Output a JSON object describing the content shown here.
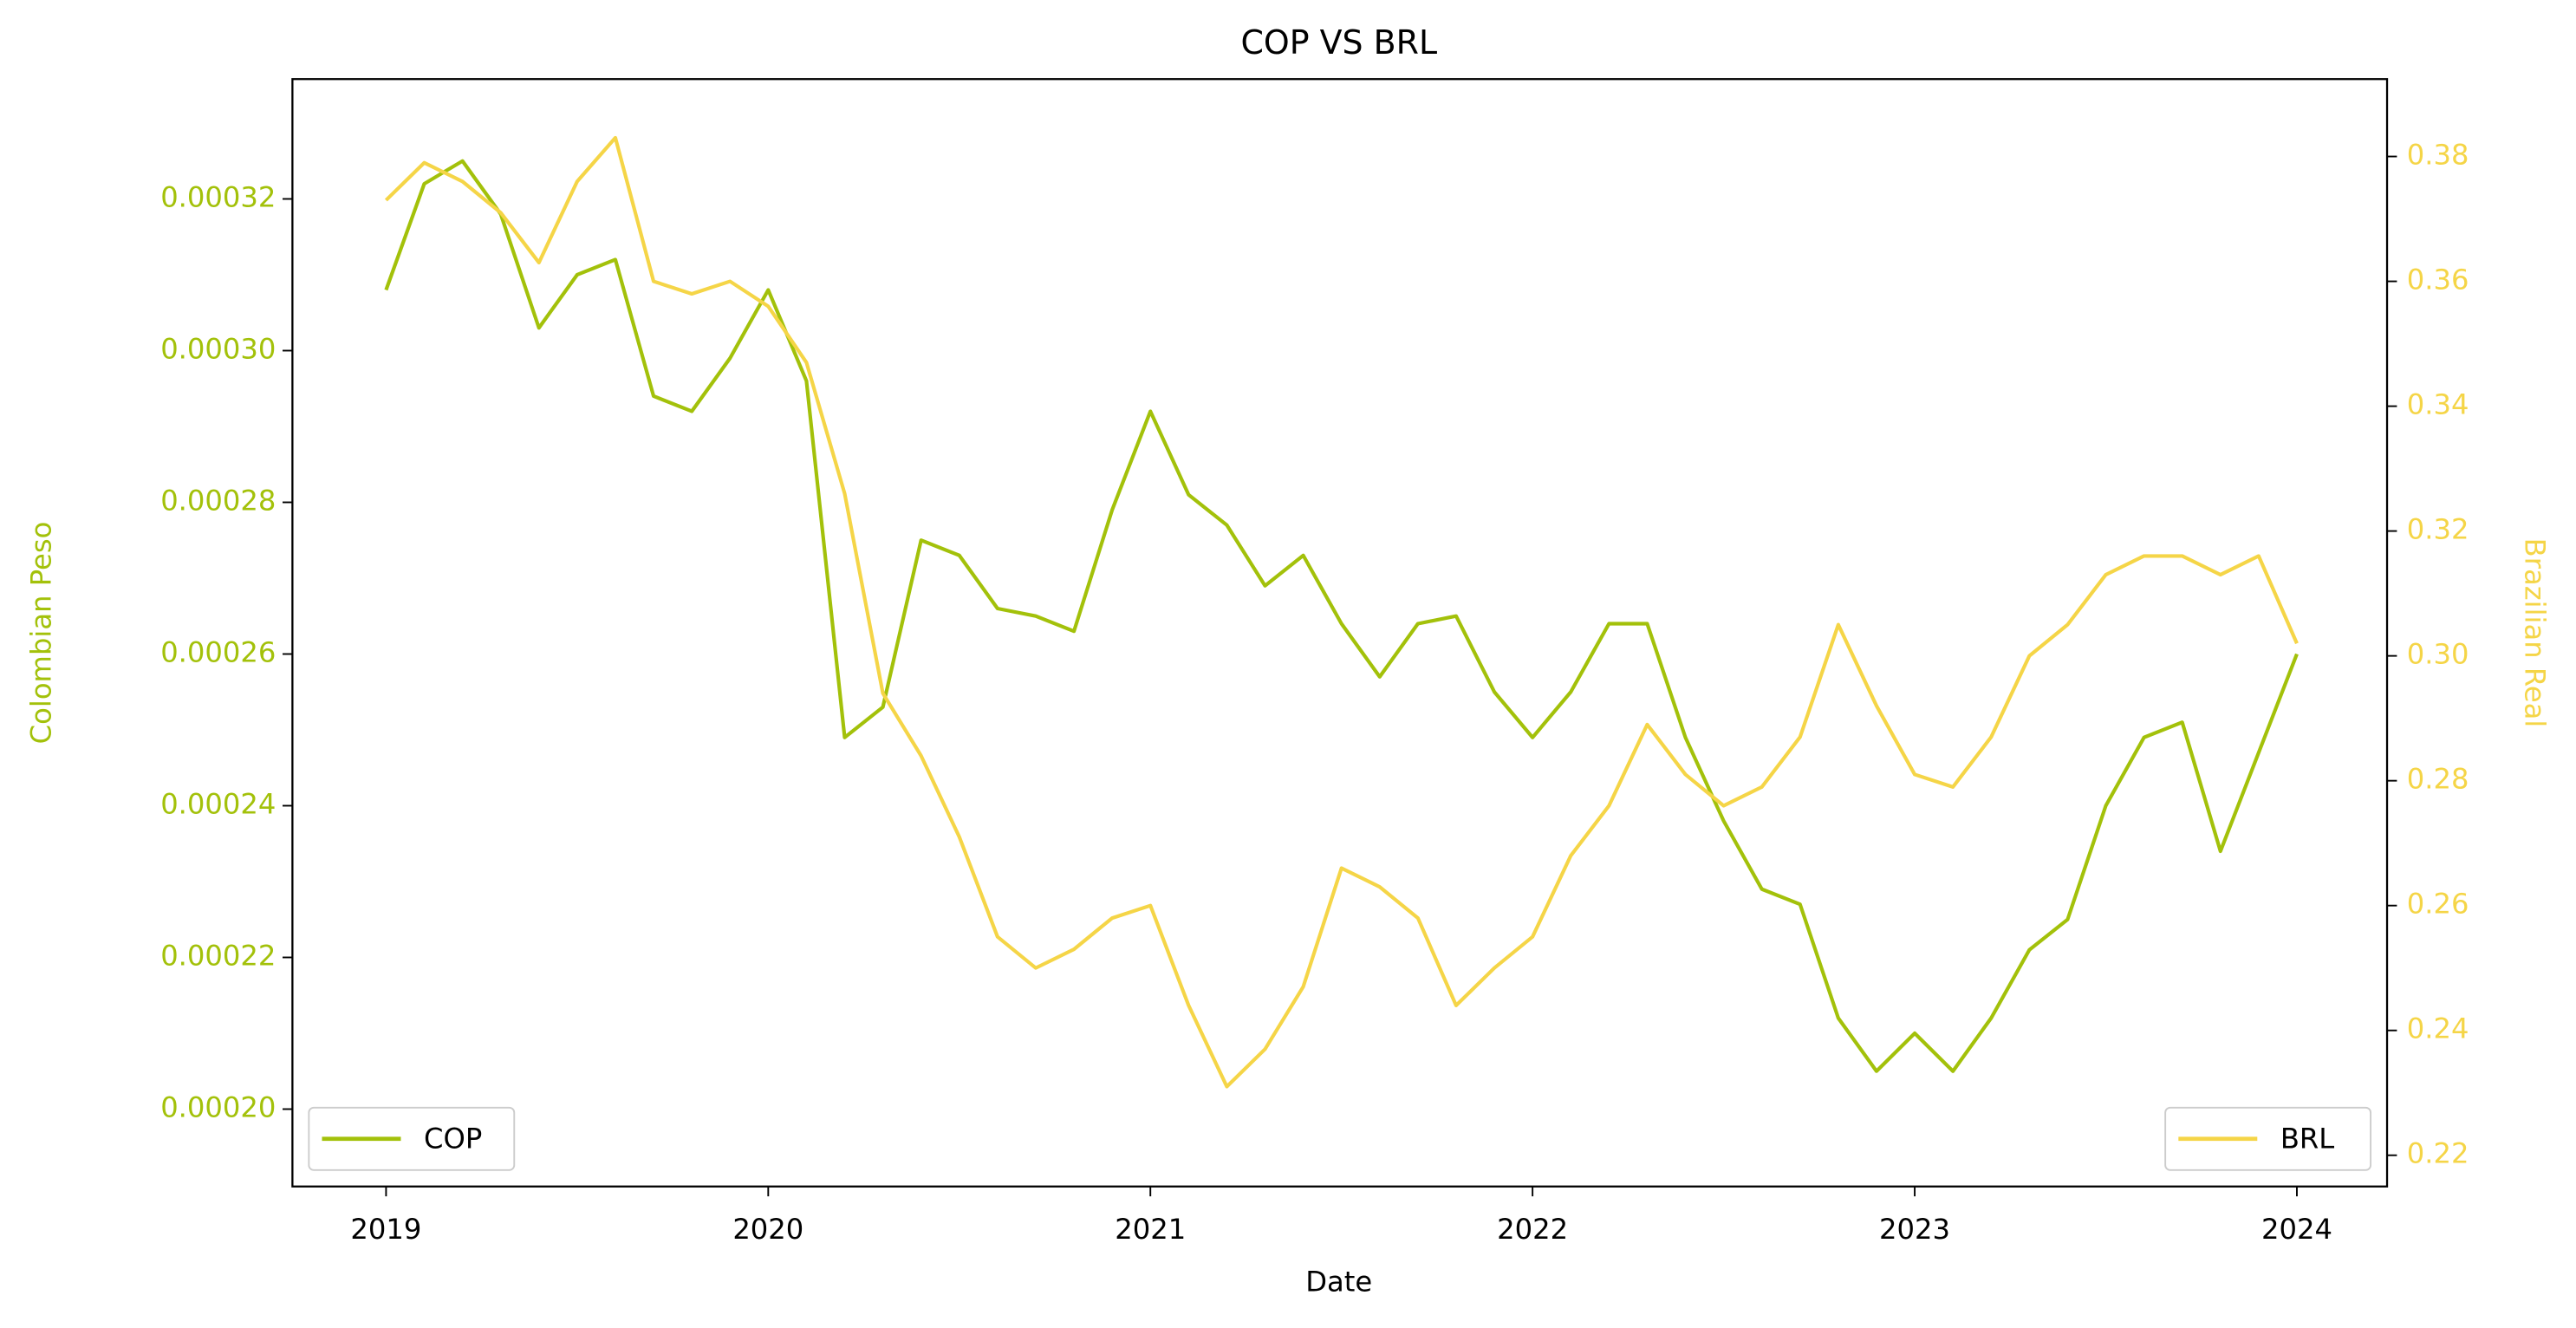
{
  "chart_data": {
    "type": "line",
    "title": "COP VS BRL",
    "x_label": "Date",
    "y_label": "Colombian Peso",
    "y2_label": "Brazilian Real",
    "x": [
      2019.0,
      2019.1,
      2019.2,
      2019.3,
      2019.4,
      2019.5,
      2019.6,
      2019.7,
      2019.8,
      2019.9,
      2020.0,
      2020.1,
      2020.2,
      2020.3,
      2020.4,
      2020.5,
      2020.6,
      2020.7,
      2020.8,
      2020.9,
      2021.0,
      2021.1,
      2021.2,
      2021.3,
      2021.4,
      2021.5,
      2021.6,
      2021.7,
      2021.8,
      2021.9,
      2022.0,
      2022.1,
      2022.2,
      2022.3,
      2022.4,
      2022.5,
      2022.6,
      2022.7,
      2022.8,
      2022.9,
      2023.0,
      2023.1,
      2023.2,
      2023.3,
      2023.4,
      2023.5,
      2023.6,
      2023.7,
      2023.8,
      2023.9,
      2024.0
    ],
    "xlim": [
      2018.755,
      2024.236
    ],
    "xticks": [
      2019,
      2020,
      2021,
      2022,
      2023,
      2024
    ],
    "ylim": [
      0.0001898,
      0.0003358
    ],
    "yticks": [
      {
        "value": 0.0002,
        "label": "0.00020"
      },
      {
        "value": 0.00022,
        "label": "0.00022"
      },
      {
        "value": 0.00024,
        "label": "0.00024"
      },
      {
        "value": 0.00026,
        "label": "0.00026"
      },
      {
        "value": 0.00028,
        "label": "0.00028"
      },
      {
        "value": 0.0003,
        "label": "0.00030"
      },
      {
        "value": 0.00032,
        "label": "0.00032"
      }
    ],
    "y2lim": [
      0.215,
      0.3924
    ],
    "y2ticks": [
      0.22,
      0.24,
      0.26,
      0.28,
      {
        "value": 0.3,
        "label": "0.30"
      },
      0.32,
      0.34,
      0.36,
      0.38
    ],
    "series": [
      {
        "name": "COP",
        "color": "#a3c10a",
        "axis": "y",
        "legend": "lower left",
        "values": [
          0.000308,
          0.000322,
          0.000325,
          0.000318,
          0.000303,
          0.00031,
          0.000312,
          0.000294,
          0.000292,
          0.000299,
          0.000308,
          0.000296,
          0.000249,
          0.000253,
          0.000275,
          0.000273,
          0.000266,
          0.000265,
          0.000263,
          0.000279,
          0.000292,
          0.000281,
          0.000277,
          0.000269,
          0.000273,
          0.000264,
          0.000257,
          0.000264,
          0.000265,
          0.000255,
          0.000249,
          0.000255,
          0.000264,
          0.000264,
          0.000249,
          0.000238,
          0.000229,
          0.000227,
          0.000212,
          0.000205,
          0.00021,
          0.000205,
          0.000212,
          0.000221,
          0.000225,
          0.00024,
          0.000249,
          0.000251,
          0.000234,
          0.000247,
          0.00026
        ]
      },
      {
        "name": "BRL",
        "color": "#f5d547",
        "axis": "y2",
        "legend": "lower right",
        "values": [
          0.373,
          0.379,
          0.376,
          0.371,
          0.363,
          0.376,
          0.383,
          0.36,
          0.358,
          0.36,
          0.356,
          0.347,
          0.326,
          0.294,
          0.284,
          0.271,
          0.255,
          0.25,
          0.253,
          0.258,
          0.26,
          0.244,
          0.231,
          0.237,
          0.247,
          0.266,
          0.263,
          0.258,
          0.244,
          0.25,
          0.255,
          0.268,
          0.276,
          0.289,
          0.281,
          0.276,
          0.279,
          0.287,
          0.305,
          0.292,
          0.281,
          0.279,
          0.287,
          0.3,
          0.305,
          0.313,
          0.316,
          0.316,
          0.313,
          0.316,
          0.302
        ]
      }
    ]
  }
}
